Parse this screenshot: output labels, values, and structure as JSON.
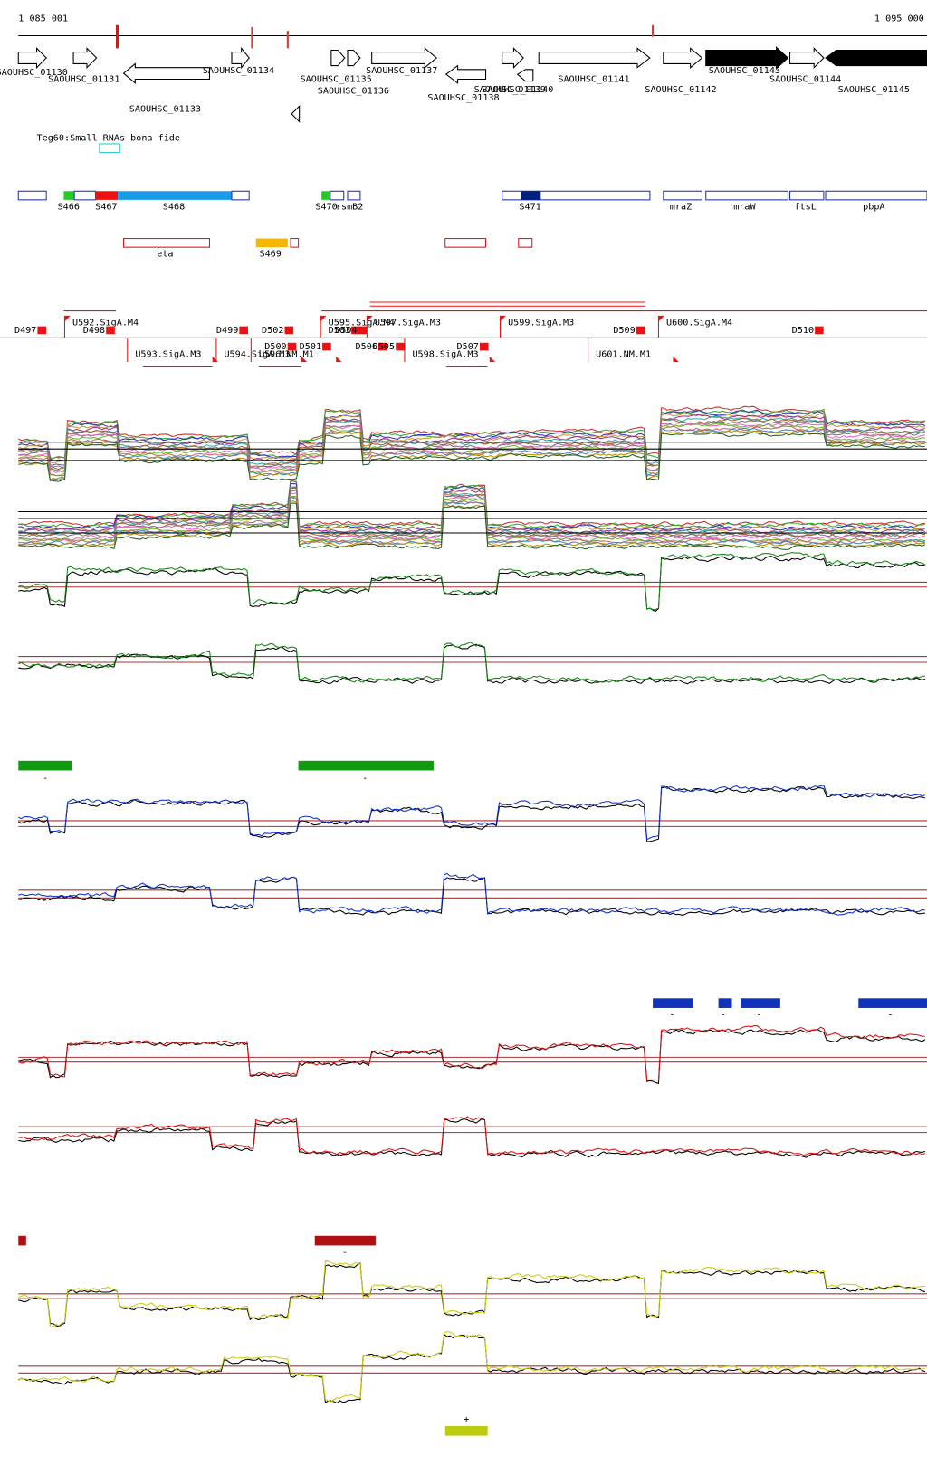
{
  "ruler": {
    "start": "1 085 001",
    "end": "1 095 000"
  },
  "genes": [
    "SAOUHSC_01130",
    "SAOUHSC_01131",
    "SAOUHSC_01133",
    "SAOUHSC_01134",
    "SAOUHSC_01135",
    "SAOUHSC_01136",
    "SAOUHSC_01137",
    "SAOUHSC_01138",
    "SAOUHSC_01139",
    "SAOUHSC_01140",
    "SAOUHSC_01141",
    "SAOUHSC_01142",
    "SAOUHSC_01143",
    "SAOUHSC_01144",
    "SAOUHSC_01145"
  ],
  "small_rna_track": {
    "label": "Teg60:Small RNAs bona fide"
  },
  "features": [
    "S466",
    "S467",
    "S468",
    "S470",
    "rsmB2",
    "S471",
    "mraZ",
    "mraW",
    "ftsL",
    "pbpA",
    "eta",
    "S469"
  ],
  "promoters": [
    "D497",
    "U592.SigA.M4",
    "D498",
    "U593.SigA.M3",
    "D499",
    "U594.SigA.M3",
    "U596.NM.M1",
    "D502",
    "D500",
    "D501",
    "U595.SigA.M4",
    "D503",
    "D504",
    "U597.SigA.M3",
    "D506",
    "D505",
    "U598.SigA.M3",
    "D507",
    "U599.SigA.M3",
    "D509",
    "U601.NM.M1",
    "U600.SigA.M4",
    "D510"
  ],
  "condition_marks": [
    "-",
    "-",
    "-",
    "-",
    "-",
    "-",
    "-",
    "+"
  ]
}
